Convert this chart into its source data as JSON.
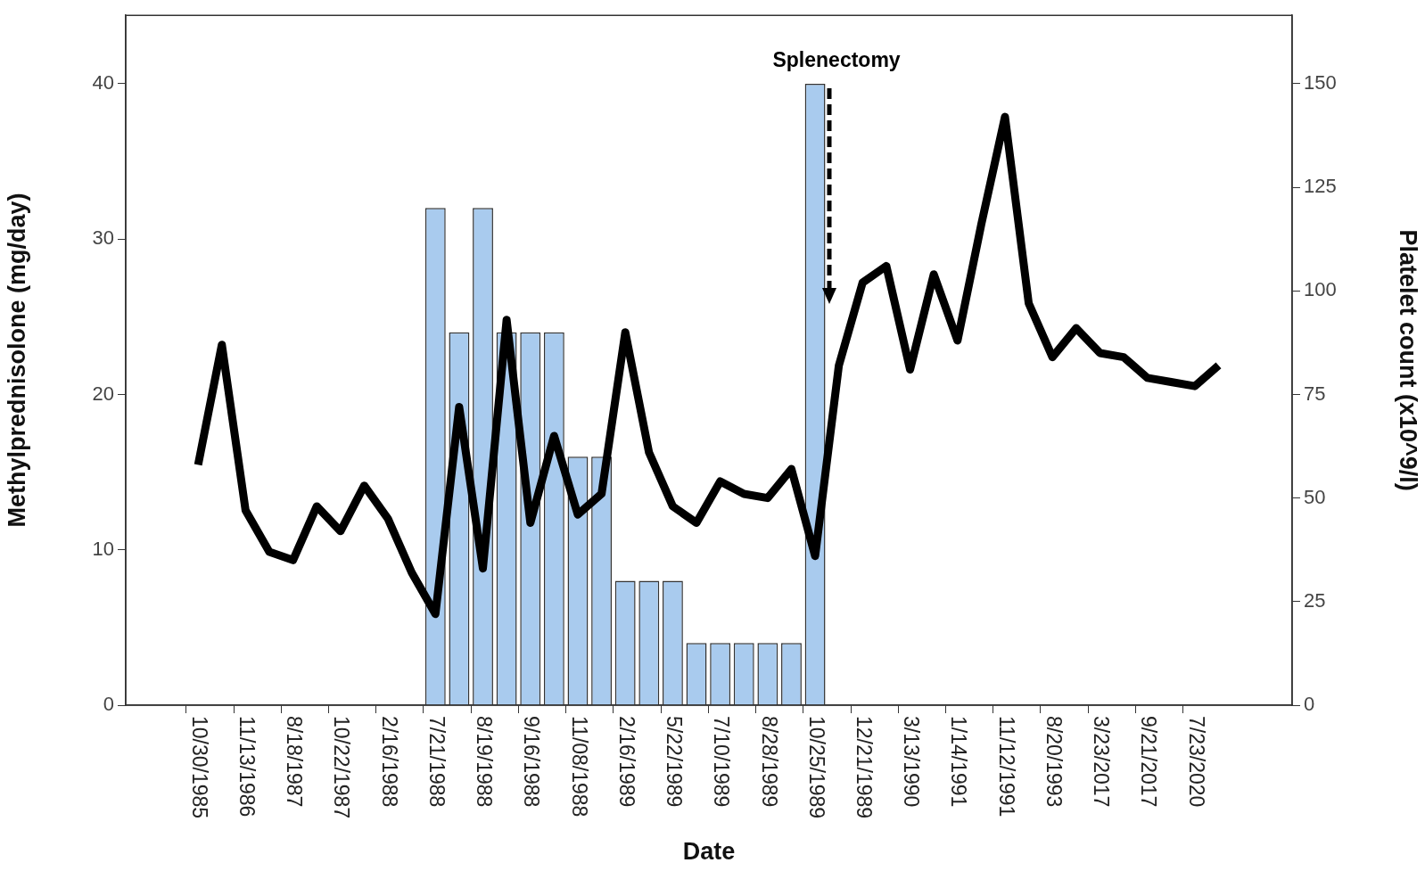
{
  "chart_data": {
    "type": "bar",
    "xlabel": "Date",
    "ylabel": "Methylprednisolone (mg/day)",
    "y2label": "Platelet count (x10^9/l)",
    "categories": [
      "10/30/1985",
      null,
      "11/13/1986",
      null,
      "8/18/1987",
      null,
      "10/22/1987",
      null,
      "2/16/1988",
      null,
      "7/21/1988",
      null,
      "8/19/1988",
      null,
      "9/16/1988",
      null,
      "11/08/1988",
      null,
      "2/16/1989",
      null,
      "5/22/1989",
      null,
      "7/10/1989",
      null,
      "8/28/1989",
      null,
      "10/25/1989",
      null,
      "12/21/1989",
      null,
      "3/13/1990",
      null,
      "1/14/1991",
      null,
      "11/12/1991",
      null,
      "8/20/1993",
      null,
      "3/23/2017",
      null,
      "9/21/2017",
      null,
      "7/23/2020",
      null
    ],
    "series": [
      {
        "color": "#a9cbee",
        "values": [
          null,
          null,
          null,
          null,
          null,
          null,
          null,
          null,
          null,
          null,
          32,
          24,
          32,
          24,
          24,
          24,
          16,
          16,
          8,
          8,
          8,
          4,
          4,
          4,
          4,
          4,
          40,
          null,
          null,
          null,
          null,
          null,
          null,
          null,
          null,
          null,
          null,
          null,
          null,
          null,
          null,
          null,
          null,
          null
        ]
      },
      {
        "type": "line",
        "axis": "y2",
        "color": "#000000",
        "values": [
          58,
          87,
          47,
          37,
          35,
          48,
          42,
          53,
          45,
          32,
          22,
          72,
          33,
          93,
          44,
          65,
          46,
          51,
          90,
          61,
          48,
          44,
          54,
          51,
          50,
          57,
          36,
          82,
          102,
          106,
          81,
          104,
          88,
          116,
          142,
          97,
          84,
          91,
          85,
          84,
          79,
          78,
          77,
          82
        ]
      }
    ],
    "ylim": [
      0,
      44.4
    ],
    "yticks": [
      0,
      10,
      20,
      30,
      40
    ],
    "y2lim": [
      0,
      166.5
    ],
    "y2ticks": [
      0,
      25,
      50,
      75,
      100,
      125,
      150
    ],
    "grid": false,
    "legend": false,
    "marker": "none",
    "line_style": "solid",
    "annotations": [
      "Splenectomy"
    ]
  }
}
